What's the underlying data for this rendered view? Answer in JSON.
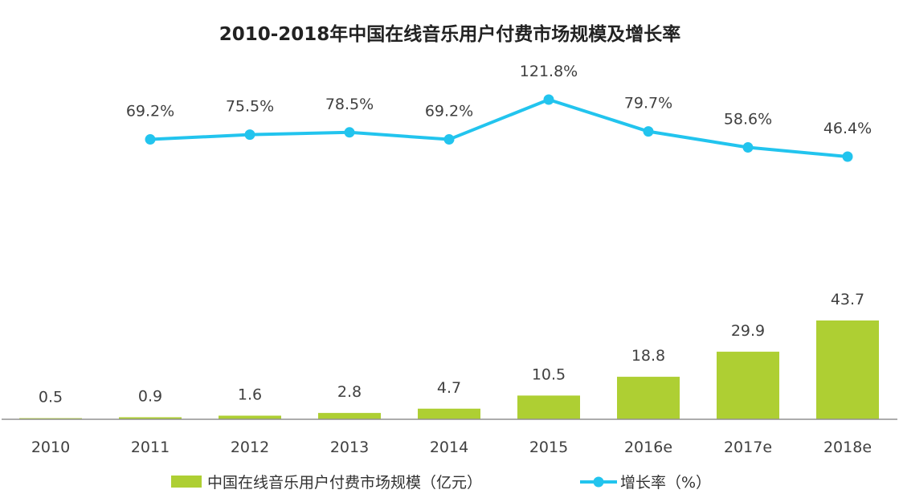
{
  "chart_data": {
    "type": "bar+line",
    "title": "2010-2018年中国在线音乐用户付费市场规模及增长率",
    "categories": [
      "2010",
      "2011",
      "2012",
      "2013",
      "2014",
      "2015",
      "2016e",
      "2017e",
      "2018e"
    ],
    "series": [
      {
        "name": "中国在线音乐用户付费市场规模（亿元）",
        "type": "bar",
        "color": "#AECF33",
        "values": [
          0.5,
          0.9,
          1.6,
          2.8,
          4.7,
          10.5,
          18.8,
          29.9,
          43.7
        ],
        "labels": [
          "0.5",
          "0.9",
          "1.6",
          "2.8",
          "4.7",
          "10.5",
          "18.8",
          "29.9",
          "43.7"
        ]
      },
      {
        "name": "增长率（%）",
        "type": "line",
        "color": "#22C4EE",
        "values": [
          null,
          69.2,
          75.5,
          78.5,
          69.2,
          121.8,
          79.7,
          58.6,
          46.4
        ],
        "labels": [
          null,
          "69.2%",
          "75.5%",
          "78.5%",
          "69.2%",
          "121.8%",
          "79.7%",
          "58.6%",
          "46.4%"
        ]
      }
    ],
    "legend_position": "bottom",
    "grid": false
  }
}
